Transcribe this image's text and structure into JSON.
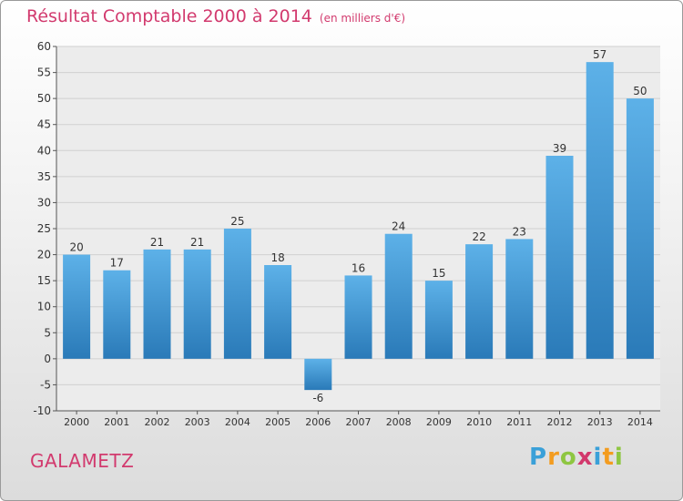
{
  "title": "Résultat Comptable 2000 à 2014",
  "subtitle": "(en milliers d'€)",
  "commune": "GALAMETZ",
  "logo": {
    "text": "Proxiti",
    "letters": [
      {
        "ch": "P",
        "color": "#3aa0d8"
      },
      {
        "ch": "r",
        "color": "#f39c1f"
      },
      {
        "ch": "o",
        "color": "#8ec641"
      },
      {
        "ch": "x",
        "color": "#d2386c"
      },
      {
        "ch": "i",
        "color": "#3aa0d8"
      },
      {
        "ch": "t",
        "color": "#f39c1f"
      },
      {
        "ch": "i",
        "color": "#8ec641"
      }
    ]
  },
  "colors": {
    "title": "#d23a6e",
    "bar_top": "#5db1e8",
    "bar_bottom": "#2a7ab8",
    "grid": "#d0d0d0",
    "axis": "#555555"
  },
  "chart_data": {
    "type": "bar",
    "categories": [
      "2000",
      "2001",
      "2002",
      "2003",
      "2004",
      "2005",
      "2006",
      "2007",
      "2008",
      "2009",
      "2010",
      "2011",
      "2012",
      "2013",
      "2014"
    ],
    "values": [
      20,
      17,
      21,
      21,
      25,
      18,
      -6,
      16,
      24,
      15,
      22,
      23,
      39,
      57,
      50
    ],
    "ylim": [
      -10,
      60
    ],
    "yticks": [
      -10,
      -5,
      0,
      5,
      10,
      15,
      20,
      25,
      30,
      35,
      40,
      45,
      50,
      55,
      60
    ],
    "grid": "horizontal",
    "legend": "none"
  }
}
